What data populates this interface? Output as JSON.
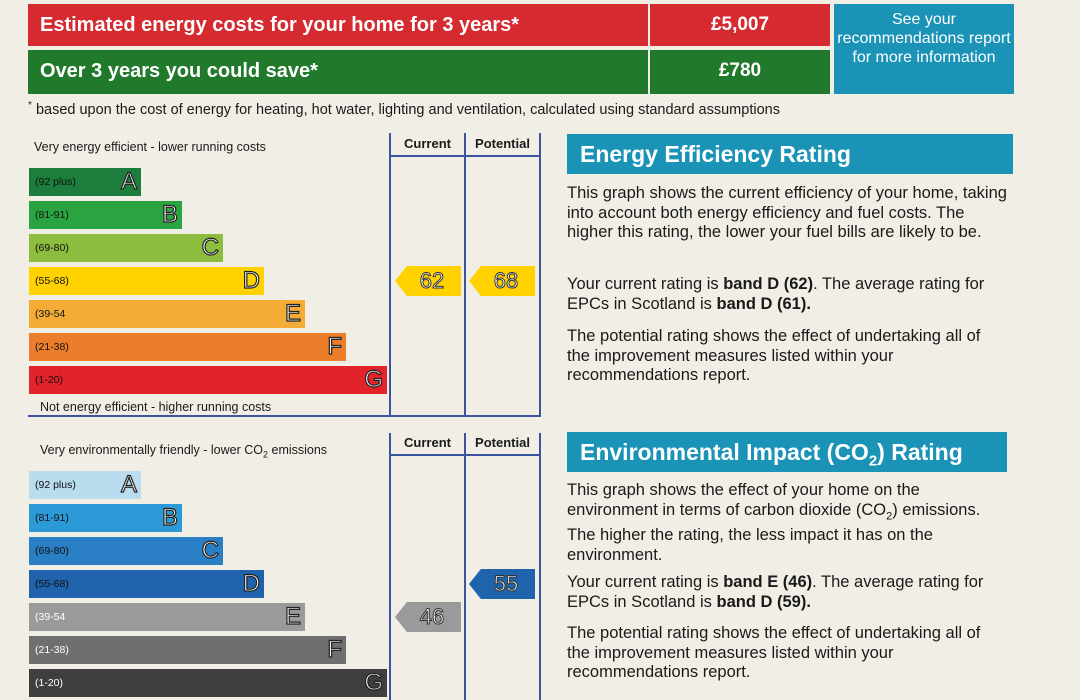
{
  "costs": {
    "row1_label": "Estimated energy costs for your home for 3 years*",
    "row1_value": "£5,007",
    "row2_label": "Over 3 years you could save*",
    "row2_value": "£780",
    "see_box": "See your recommendations report for more information",
    "footnote_mark": "*",
    "footnote": "based upon the cost of energy for heating, hot water, lighting and ventilation, calculated using standard assumptions"
  },
  "energy_chart": {
    "top_label": "Very energy efficient - lower running costs",
    "bottom_label": "Not energy efficient - higher running costs",
    "current_header": "Current",
    "potential_header": "Potential",
    "bands": [
      {
        "range": "(92 plus)",
        "letter": "A",
        "color": "#1d7d3c"
      },
      {
        "range": "(81-91)",
        "letter": "B",
        "color": "#2aa441"
      },
      {
        "range": "(69-80)",
        "letter": "C",
        "color": "#8cbd3f"
      },
      {
        "range": "(55-68)",
        "letter": "D",
        "color": "#ffd200"
      },
      {
        "range": "(39-54",
        "letter": "E",
        "color": "#f4ac36"
      },
      {
        "range": "(21-38)",
        "letter": "F",
        "color": "#ec7d2a"
      },
      {
        "range": "(1-20)",
        "letter": "G",
        "color": "#e2232a"
      }
    ],
    "current_value": "62",
    "potential_value": "68",
    "current_band_index": 3,
    "potential_band_index": 3
  },
  "env_chart": {
    "top_label_pre": "Very environmentally friendly - lower CO",
    "top_label_sub": "2",
    "top_label_post": " emissions",
    "current_header": "Current",
    "potential_header": "Potential",
    "bands": [
      {
        "range": "(92 plus)",
        "letter": "A",
        "color": "#b9dcef"
      },
      {
        "range": "(81-91)",
        "letter": "B",
        "color": "#2c9ad6"
      },
      {
        "range": "(69-80)",
        "letter": "C",
        "color": "#2a7fc4"
      },
      {
        "range": "(55-68)",
        "letter": "D",
        "color": "#1f63ad"
      },
      {
        "range": "(39-54",
        "letter": "E",
        "color": "#9a9a9a"
      },
      {
        "range": "(21-38)",
        "letter": "F",
        "color": "#6f6f6f"
      },
      {
        "range": "(1-20)",
        "letter": "G",
        "color": "#3e3e3e"
      }
    ],
    "current_value": "46",
    "potential_value": "55",
    "current_band_index": 4,
    "potential_band_index": 3
  },
  "energy_text": {
    "heading": "Energy Efficiency Rating",
    "p1": "This graph shows the current efficiency of your home, taking into account both energy efficiency and fuel costs. The higher this rating, the lower your fuel bills are likely to be.",
    "p2_pre": "Your current rating is ",
    "p2_bold1": "band D (62)",
    "p2_mid": ". The average rating for EPCs in Scotland is ",
    "p2_bold2": "band D (61).",
    "p3": "The potential rating shows the effect of undertaking all of the improvement measures listed within your recommendations report."
  },
  "env_text": {
    "heading_pre": "Environmental Impact (CO",
    "heading_sub": "2",
    "heading_post": ") Rating",
    "p1_pre": "This graph shows the effect of your home on the environment in terms of carbon dioxide (CO",
    "p1_sub": "2",
    "p1_post": ") emissions. The higher the rating, the less impact it has on the environment.",
    "p2_pre": "Your current rating is ",
    "p2_bold1": "band E (46)",
    "p2_mid": ". The average rating for EPCs in Scotland is ",
    "p2_bold2": "band D (59).",
    "p3": "The potential rating shows the effect of undertaking all of the improvement measures listed within your recommendations report."
  }
}
